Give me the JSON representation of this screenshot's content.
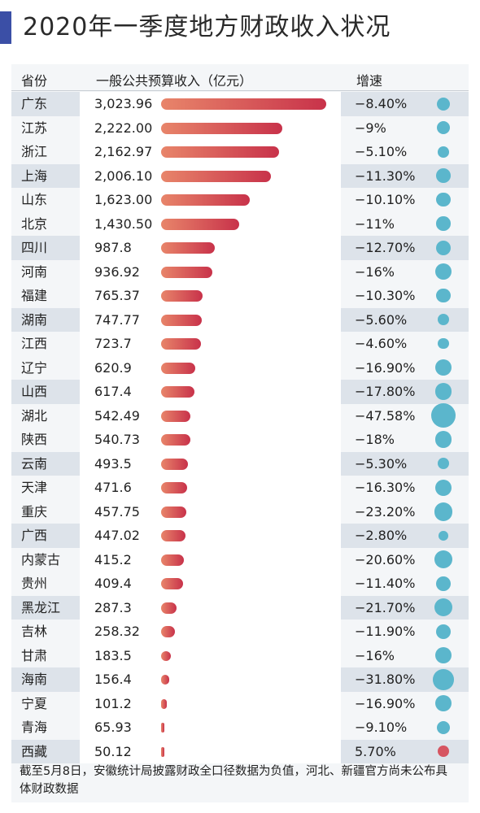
{
  "title": "2020年一季度地方财政收入状况",
  "headers": {
    "province": "省份",
    "budget": "一般公共预算收入（亿元）",
    "growth": "增速"
  },
  "chart_data": {
    "type": "bar",
    "title": "2020年一季度地方财政收入状况",
    "xlabel": "",
    "ylabel": "一般公共预算收入（亿元）",
    "categories": [
      "广东",
      "江苏",
      "浙江",
      "上海",
      "山东",
      "北京",
      "四川",
      "河南",
      "福建",
      "湖南",
      "江西",
      "辽宁",
      "山西",
      "湖北",
      "陕西",
      "云南",
      "天津",
      "重庆",
      "广西",
      "内蒙古",
      "贵州",
      "黑龙江",
      "吉林",
      "甘肃",
      "海南",
      "宁夏",
      "青海",
      "西藏"
    ],
    "values": [
      3023.96,
      2222.0,
      2162.97,
      2006.1,
      1623.0,
      1430.5,
      987.8,
      936.92,
      765.37,
      747.77,
      723.7,
      620.9,
      617.4,
      542.49,
      540.73,
      493.5,
      471.6,
      457.75,
      447.02,
      415.2,
      409.4,
      287.3,
      258.32,
      183.5,
      156.4,
      101.2,
      65.93,
      50.12
    ],
    "value_labels": [
      "3,023.96",
      "2,222.00",
      "2,162.97",
      "2,006.10",
      "1,623.00",
      "1,430.50",
      "987.8",
      "936.92",
      "765.37",
      "747.77",
      "723.7",
      "620.9",
      "617.4",
      "542.49",
      "540.73",
      "493.5",
      "471.6",
      "457.75",
      "447.02",
      "415.2",
      "409.4",
      "287.3",
      "258.32",
      "183.5",
      "156.4",
      "101.2",
      "65.93",
      "50.12"
    ],
    "growth_values": [
      -8.4,
      -9,
      -5.1,
      -11.3,
      -10.1,
      -11,
      -12.7,
      -16,
      -10.3,
      -5.6,
      -4.6,
      -16.9,
      -17.8,
      -47.58,
      -18,
      -5.3,
      -16.3,
      -23.2,
      -2.8,
      -20.6,
      -11.4,
      -21.7,
      -11.9,
      -16,
      -31.8,
      -16.9,
      -9.1,
      5.7
    ],
    "growth_labels": [
      "−8.40%",
      "−9%",
      "−5.10%",
      "−11.30%",
      "−10.10%",
      "−11%",
      "−12.70%",
      "−16%",
      "−10.30%",
      "−5.60%",
      "−4.60%",
      "−16.90%",
      "−17.80%",
      "−47.58%",
      "−18%",
      "−5.30%",
      "−16.30%",
      "−23.20%",
      "−2.80%",
      "−20.60%",
      "−11.40%",
      "−21.70%",
      "−11.90%",
      "−16%",
      "−31.80%",
      "−16.90%",
      "−9.10%",
      "5.70%"
    ],
    "colors": {
      "bar_start": "#e8856a",
      "bar_end": "#c8324a",
      "negative_dot": "#5bb6cc",
      "positive_dot": "#d65561"
    }
  },
  "footnote": "截至5月8日，安徽统计局披露财政全口径数据为负值，河北、新疆官方尚未公布具体财政数据"
}
